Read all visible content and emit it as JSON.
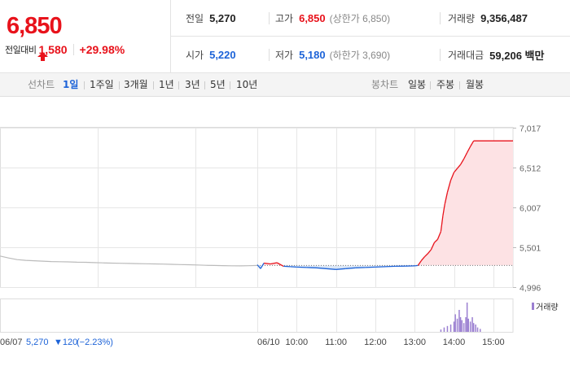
{
  "summary": {
    "current_price": "6,850",
    "change_label": "전일대비",
    "change_amount": "1,580",
    "change_rate": "+29.98%",
    "colors": {
      "up": "#e8121b",
      "down": "#1d63d8"
    }
  },
  "stats": {
    "prev_close": {
      "label": "전일",
      "value": "5,270"
    },
    "high": {
      "label": "고가",
      "value": "6,850",
      "sub": "(상한가 6,850)"
    },
    "volume": {
      "label": "거래량",
      "value": "9,356,487"
    },
    "open": {
      "label": "시가",
      "value": "5,220"
    },
    "low": {
      "label": "저가",
      "value": "5,180",
      "sub": "(하한가 3,690)"
    },
    "trade_value": {
      "label": "거래대금",
      "value": "59,206 백만"
    }
  },
  "toolbar": {
    "line_chart_label": "선차트",
    "line_periods": [
      "1일",
      "1주일",
      "3개월",
      "1년",
      "3년",
      "5년",
      "10년"
    ],
    "active_period": "1일",
    "candle_chart_label": "봉차트",
    "candle_periods": [
      "일봉",
      "주봉",
      "월봉"
    ]
  },
  "chart_data": {
    "type": "line",
    "y_ticks": [
      "7,017",
      "6,512",
      "6,007",
      "5,501",
      "4,996"
    ],
    "ylim": [
      4996,
      7017
    ],
    "reference_price": 5270,
    "previous_day": {
      "date": "06/07",
      "close": "5,270",
      "change": "▼120",
      "change_rate": "(−2.23%)",
      "price_series": [
        5390,
        5365,
        5345,
        5335,
        5330,
        5325,
        5320,
        5318,
        5316,
        5312,
        5310,
        5306,
        5303,
        5300,
        5298,
        5296,
        5294,
        5292,
        5290,
        5288,
        5285,
        5282,
        5280,
        5276,
        5272,
        5270,
        5268,
        5266,
        5265,
        5267,
        5270
      ]
    },
    "today": {
      "date": "06/10",
      "time_ticks": [
        "10:00",
        "11:00",
        "12:00",
        "13:00",
        "14:00",
        "15:00"
      ],
      "series": [
        {
          "time": "09:00",
          "price": 5280
        },
        {
          "time": "09:05",
          "price": 5230
        },
        {
          "time": "09:10",
          "price": 5300
        },
        {
          "time": "09:20",
          "price": 5290
        },
        {
          "time": "09:30",
          "price": 5305
        },
        {
          "time": "09:40",
          "price": 5260
        },
        {
          "time": "09:50",
          "price": 5255
        },
        {
          "time": "10:00",
          "price": 5250
        },
        {
          "time": "10:15",
          "price": 5245
        },
        {
          "time": "10:30",
          "price": 5240
        },
        {
          "time": "10:45",
          "price": 5230
        },
        {
          "time": "11:00",
          "price": 5220
        },
        {
          "time": "11:15",
          "price": 5230
        },
        {
          "time": "11:30",
          "price": 5240
        },
        {
          "time": "11:45",
          "price": 5245
        },
        {
          "time": "12:00",
          "price": 5250
        },
        {
          "time": "12:15",
          "price": 5255
        },
        {
          "time": "12:30",
          "price": 5260
        },
        {
          "time": "12:45",
          "price": 5262
        },
        {
          "time": "13:00",
          "price": 5265
        },
        {
          "time": "13:05",
          "price": 5270
        },
        {
          "time": "13:10",
          "price": 5330
        },
        {
          "time": "13:15",
          "price": 5380
        },
        {
          "time": "13:20",
          "price": 5420
        },
        {
          "time": "13:25",
          "price": 5470
        },
        {
          "time": "13:30",
          "price": 5560
        },
        {
          "time": "13:35",
          "price": 5600
        },
        {
          "time": "13:40",
          "price": 5700
        },
        {
          "time": "13:43",
          "price": 5900
        },
        {
          "time": "13:46",
          "price": 6050
        },
        {
          "time": "13:50",
          "price": 6200
        },
        {
          "time": "13:55",
          "price": 6350
        },
        {
          "time": "14:00",
          "price": 6450
        },
        {
          "time": "14:05",
          "price": 6500
        },
        {
          "time": "14:10",
          "price": 6550
        },
        {
          "time": "14:15",
          "price": 6620
        },
        {
          "time": "14:20",
          "price": 6700
        },
        {
          "time": "14:25",
          "price": 6780
        },
        {
          "time": "14:30",
          "price": 6850
        },
        {
          "time": "15:30",
          "price": 6850
        }
      ]
    },
    "volume": {
      "legend": "거래량",
      "times": [
        "13:40",
        "13:45",
        "13:50",
        "13:55",
        "14:00",
        "14:02",
        "14:05",
        "14:08",
        "14:10",
        "14:12",
        "14:15",
        "14:18",
        "14:20",
        "14:22",
        "14:25",
        "14:28",
        "14:30",
        "14:33",
        "14:36",
        "14:40"
      ],
      "relative": [
        0.08,
        0.15,
        0.2,
        0.25,
        0.35,
        0.6,
        0.45,
        0.75,
        0.5,
        0.4,
        0.3,
        0.5,
        1.0,
        0.45,
        0.35,
        0.5,
        0.3,
        0.25,
        0.15,
        0.1
      ]
    },
    "colors": {
      "up_line": "#e8121b",
      "down_line": "#1d63d8",
      "prev_line": "#bbbbbb",
      "up_fill": "#fde2e4",
      "down_fill": "#d9e6f7",
      "volume": "#9b7fd1",
      "grid": "#e6e6e6"
    }
  }
}
